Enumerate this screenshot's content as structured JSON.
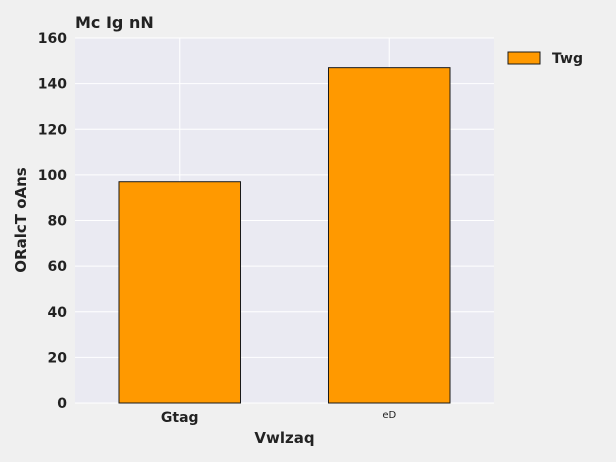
{
  "chart_data": {
    "type": "bar",
    "title": "Mc Ig nN",
    "xlabel": "Vwlzaq",
    "ylabel": "ORalcT oAns",
    "categories": [
      "Gtag",
      "eD"
    ],
    "series": [
      {
        "name": "Twg",
        "values": [
          97,
          147
        ]
      }
    ],
    "ylim": [
      0,
      160
    ],
    "yticks": [
      0,
      20,
      40,
      60,
      80,
      100,
      120,
      140,
      160
    ],
    "grid": true,
    "legend": "top-right-outside",
    "colors": {
      "bar": "#ff9900",
      "bar_edge": "#1a1a1a",
      "plot_bg": "#eaeaf2",
      "page_bg": "#f0f0f0",
      "grid": "#ffffff"
    }
  }
}
